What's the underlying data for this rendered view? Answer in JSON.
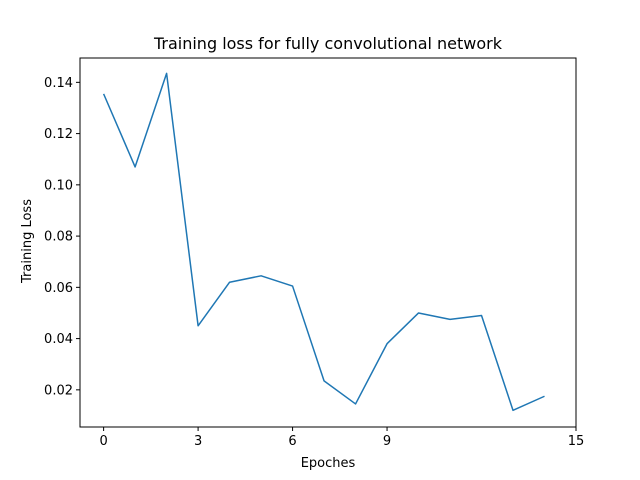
{
  "chart_data": {
    "type": "line",
    "title": "Training loss for fully convolutional network",
    "xlabel": "Epoches",
    "ylabel": "Training Loss",
    "xlim": [
      -0.75,
      15
    ],
    "ylim": [
      0.0055,
      0.1495
    ],
    "xticks": [
      0,
      3,
      6,
      9,
      15
    ],
    "yticks": [
      0.02,
      0.04,
      0.06,
      0.08,
      0.1,
      0.12,
      0.14
    ],
    "ytick_labels": [
      "0.02",
      "0.04",
      "0.06",
      "0.08",
      "0.10",
      "0.12",
      "0.14"
    ],
    "grid": false,
    "series": [
      {
        "color": "#1f77b4",
        "x": [
          0,
          1,
          2,
          3,
          4,
          5,
          6,
          7,
          8,
          9,
          10,
          11,
          12,
          13,
          14
        ],
        "y": [
          0.1355,
          0.107,
          0.1435,
          0.045,
          0.062,
          0.0645,
          0.0605,
          0.0235,
          0.0145,
          0.038,
          0.05,
          0.0475,
          0.049,
          0.012,
          0.0175
        ]
      }
    ]
  }
}
